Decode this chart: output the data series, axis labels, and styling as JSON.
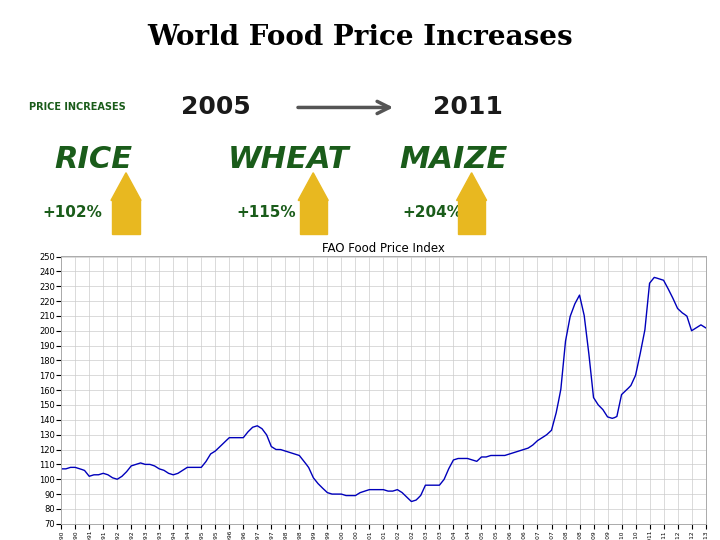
{
  "title": "World Food Price Increases",
  "chart_title": "FAO Food Price Index",
  "background_color": "#ffffff",
  "banner_bg": "#b8d4d8",
  "line_color": "#0000BB",
  "ylim": [
    70,
    250
  ],
  "yticks": [
    70,
    80,
    90,
    100,
    110,
    120,
    130,
    140,
    150,
    160,
    170,
    180,
    190,
    200,
    210,
    220,
    230,
    240,
    250
  ],
  "key_points": [
    [
      1990.0,
      107
    ],
    [
      1990.17,
      107
    ],
    [
      1990.33,
      108
    ],
    [
      1990.5,
      108
    ],
    [
      1990.67,
      107
    ],
    [
      1990.83,
      106
    ],
    [
      1991.0,
      102
    ],
    [
      1991.17,
      103
    ],
    [
      1991.33,
      103
    ],
    [
      1991.5,
      104
    ],
    [
      1991.67,
      103
    ],
    [
      1991.83,
      101
    ],
    [
      1992.0,
      100
    ],
    [
      1992.17,
      102
    ],
    [
      1992.33,
      105
    ],
    [
      1992.5,
      109
    ],
    [
      1992.67,
      110
    ],
    [
      1992.83,
      111
    ],
    [
      1993.0,
      110
    ],
    [
      1993.17,
      110
    ],
    [
      1993.33,
      109
    ],
    [
      1993.5,
      107
    ],
    [
      1993.67,
      106
    ],
    [
      1993.83,
      104
    ],
    [
      1994.0,
      103
    ],
    [
      1994.17,
      104
    ],
    [
      1994.33,
      106
    ],
    [
      1994.5,
      108
    ],
    [
      1994.67,
      108
    ],
    [
      1994.83,
      108
    ],
    [
      1995.0,
      108
    ],
    [
      1995.17,
      112
    ],
    [
      1995.33,
      117
    ],
    [
      1995.5,
      119
    ],
    [
      1995.67,
      122
    ],
    [
      1995.83,
      125
    ],
    [
      1996.0,
      128
    ],
    [
      1996.17,
      128
    ],
    [
      1996.33,
      128
    ],
    [
      1996.5,
      128
    ],
    [
      1996.67,
      132
    ],
    [
      1996.83,
      135
    ],
    [
      1997.0,
      136
    ],
    [
      1997.17,
      134
    ],
    [
      1997.33,
      130
    ],
    [
      1997.5,
      122
    ],
    [
      1997.67,
      120
    ],
    [
      1997.83,
      120
    ],
    [
      1998.0,
      119
    ],
    [
      1998.17,
      118
    ],
    [
      1998.33,
      117
    ],
    [
      1998.5,
      116
    ],
    [
      1998.67,
      112
    ],
    [
      1998.83,
      108
    ],
    [
      1999.0,
      101
    ],
    [
      1999.17,
      97
    ],
    [
      1999.33,
      94
    ],
    [
      1999.5,
      91
    ],
    [
      1999.67,
      90
    ],
    [
      1999.83,
      90
    ],
    [
      2000.0,
      90
    ],
    [
      2000.17,
      89
    ],
    [
      2000.33,
      89
    ],
    [
      2000.5,
      89
    ],
    [
      2000.67,
      91
    ],
    [
      2000.83,
      92
    ],
    [
      2001.0,
      93
    ],
    [
      2001.17,
      93
    ],
    [
      2001.33,
      93
    ],
    [
      2001.5,
      93
    ],
    [
      2001.67,
      92
    ],
    [
      2001.83,
      92
    ],
    [
      2002.0,
      93
    ],
    [
      2002.17,
      91
    ],
    [
      2002.33,
      88
    ],
    [
      2002.5,
      85
    ],
    [
      2002.67,
      86
    ],
    [
      2002.83,
      89
    ],
    [
      2003.0,
      96
    ],
    [
      2003.17,
      96
    ],
    [
      2003.33,
      96
    ],
    [
      2003.5,
      96
    ],
    [
      2003.67,
      100
    ],
    [
      2003.83,
      107
    ],
    [
      2004.0,
      113
    ],
    [
      2004.17,
      114
    ],
    [
      2004.33,
      114
    ],
    [
      2004.5,
      114
    ],
    [
      2004.67,
      113
    ],
    [
      2004.83,
      112
    ],
    [
      2005.0,
      115
    ],
    [
      2005.17,
      115
    ],
    [
      2005.33,
      116
    ],
    [
      2005.5,
      116
    ],
    [
      2005.67,
      116
    ],
    [
      2005.83,
      116
    ],
    [
      2006.0,
      117
    ],
    [
      2006.17,
      118
    ],
    [
      2006.33,
      119
    ],
    [
      2006.5,
      120
    ],
    [
      2006.67,
      121
    ],
    [
      2006.83,
      123
    ],
    [
      2007.0,
      126
    ],
    [
      2007.17,
      128
    ],
    [
      2007.33,
      130
    ],
    [
      2007.5,
      133
    ],
    [
      2007.67,
      145
    ],
    [
      2007.83,
      160
    ],
    [
      2008.0,
      193
    ],
    [
      2008.17,
      210
    ],
    [
      2008.33,
      218
    ],
    [
      2008.5,
      224
    ],
    [
      2008.67,
      210
    ],
    [
      2008.83,
      185
    ],
    [
      2009.0,
      155
    ],
    [
      2009.17,
      150
    ],
    [
      2009.33,
      147
    ],
    [
      2009.5,
      142
    ],
    [
      2009.67,
      141
    ],
    [
      2009.83,
      142
    ],
    [
      2010.0,
      157
    ],
    [
      2010.17,
      160
    ],
    [
      2010.33,
      163
    ],
    [
      2010.5,
      170
    ],
    [
      2010.67,
      185
    ],
    [
      2010.83,
      200
    ],
    [
      2011.0,
      232
    ],
    [
      2011.17,
      236
    ],
    [
      2011.33,
      235
    ],
    [
      2011.5,
      234
    ],
    [
      2011.67,
      228
    ],
    [
      2011.83,
      222
    ],
    [
      2012.0,
      215
    ],
    [
      2012.17,
      212
    ],
    [
      2012.33,
      210
    ],
    [
      2012.5,
      200
    ],
    [
      2012.67,
      202
    ],
    [
      2012.83,
      204
    ],
    [
      2013.0,
      202
    ]
  ]
}
